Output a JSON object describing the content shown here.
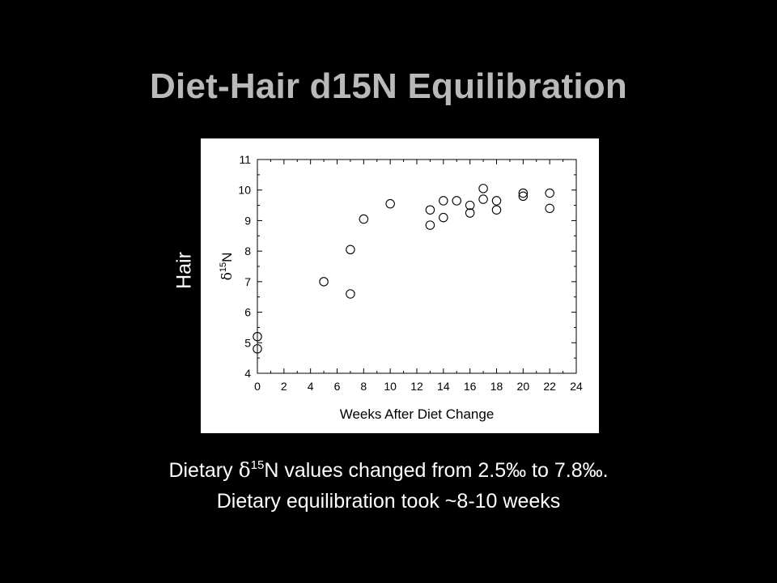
{
  "slide": {
    "title": "Diet-Hair d15N Equilibration",
    "side_label": "Hair",
    "caption_line1": {
      "delta": "δ",
      "superscript": "15",
      "text": "N values changed from 2.5‰ to 7.8‰.",
      "prefix": "Dietary "
    },
    "caption_line2": "Dietary equilibration took ~8-10 weeks"
  },
  "chart_data": {
    "type": "scatter",
    "xlabel": "Weeks After Diet Change",
    "ylabel_delta": "δ",
    "ylabel_sup": "15",
    "ylabel_rest": "N",
    "xlim": [
      0,
      24
    ],
    "ylim": [
      4,
      11
    ],
    "xticks": [
      0,
      2,
      4,
      6,
      8,
      10,
      12,
      14,
      16,
      18,
      20,
      22,
      24
    ],
    "yticks": [
      4,
      5,
      6,
      7,
      8,
      9,
      10,
      11
    ],
    "grid": false,
    "marker": "open-circle",
    "points": [
      {
        "x": 0,
        "y": 5.2
      },
      {
        "x": 0,
        "y": 4.8
      },
      {
        "x": 5,
        "y": 7.0
      },
      {
        "x": 7,
        "y": 8.05
      },
      {
        "x": 7,
        "y": 6.6
      },
      {
        "x": 8,
        "y": 9.05
      },
      {
        "x": 10,
        "y": 9.55
      },
      {
        "x": 13,
        "y": 9.35
      },
      {
        "x": 13,
        "y": 8.85
      },
      {
        "x": 14,
        "y": 9.65
      },
      {
        "x": 14,
        "y": 9.1
      },
      {
        "x": 15,
        "y": 9.65
      },
      {
        "x": 16,
        "y": 9.5
      },
      {
        "x": 16,
        "y": 9.25
      },
      {
        "x": 17,
        "y": 10.05
      },
      {
        "x": 17,
        "y": 9.7
      },
      {
        "x": 18,
        "y": 9.65
      },
      {
        "x": 18,
        "y": 9.35
      },
      {
        "x": 20,
        "y": 9.9
      },
      {
        "x": 20,
        "y": 9.8
      },
      {
        "x": 22,
        "y": 9.9
      },
      {
        "x": 22,
        "y": 9.4
      }
    ]
  }
}
